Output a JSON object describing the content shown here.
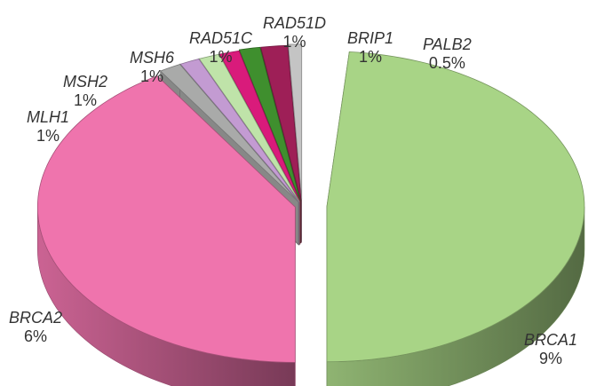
{
  "chart_data": {
    "type": "pie",
    "categories": [
      "BRCA1",
      "BRCA2",
      "MLH1",
      "MSH2",
      "MSH6",
      "RAD51C",
      "RAD51D",
      "BRIP1",
      "PALB2"
    ],
    "values": [
      9,
      6,
      1,
      1,
      1,
      1,
      1,
      1,
      0.5
    ],
    "value_labels": [
      "9%",
      "6%",
      "1%",
      "1%",
      "1%",
      "1%",
      "1%",
      "1%",
      "0.5%"
    ],
    "colors": [
      "#a8d486",
      "#ef74ad",
      "#a9aaa9",
      "#c39bd2",
      "#bfe3a9",
      "#d91b7b",
      "#3f8f2e",
      "#9e1f57",
      "#c4c4c4"
    ],
    "title": "",
    "style": "3d-exploded"
  }
}
